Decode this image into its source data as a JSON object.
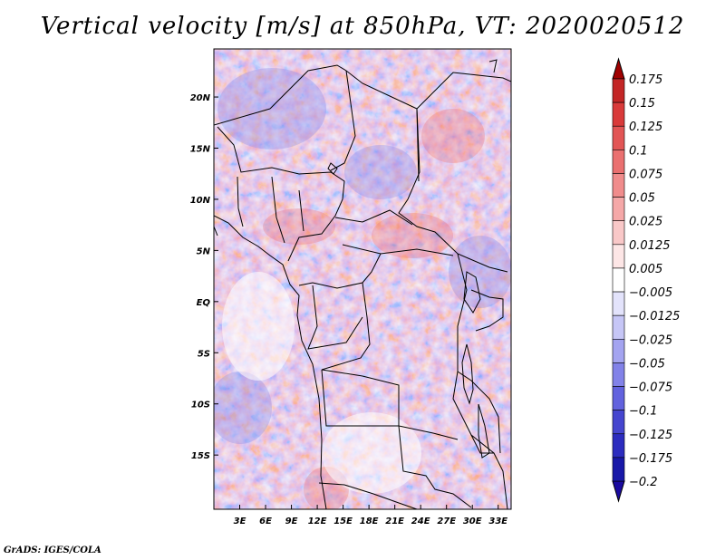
{
  "title": "Vertical velocity [m/s] at 850hPa, VT: 2020020512",
  "footer": "GrADS: IGES/COLA",
  "map": {
    "lon_range": [
      0,
      34.5
    ],
    "lat_range": [
      -20.3,
      24.7
    ],
    "lat_ticks": [
      {
        "value": 20,
        "label": "20N"
      },
      {
        "value": 15,
        "label": "15N"
      },
      {
        "value": 10,
        "label": "10N"
      },
      {
        "value": 5,
        "label": "5N"
      },
      {
        "value": 0,
        "label": "EQ"
      },
      {
        "value": -5,
        "label": "5S"
      },
      {
        "value": -10,
        "label": "10S"
      },
      {
        "value": -15,
        "label": "15S"
      }
    ],
    "lon_ticks": [
      {
        "value": 3,
        "label": "3E"
      },
      {
        "value": 6,
        "label": "6E"
      },
      {
        "value": 9,
        "label": "9E"
      },
      {
        "value": 12,
        "label": "12E"
      },
      {
        "value": 15,
        "label": "15E"
      },
      {
        "value": 18,
        "label": "18E"
      },
      {
        "value": 21,
        "label": "21E"
      },
      {
        "value": 24,
        "label": "24E"
      },
      {
        "value": 27,
        "label": "27E"
      },
      {
        "value": 30,
        "label": "30E"
      },
      {
        "value": 33,
        "label": "33E"
      }
    ]
  },
  "colorbar": {
    "labels": [
      "0.175",
      "0.15",
      "0.125",
      "0.1",
      "0.075",
      "0.05",
      "0.025",
      "0.0125",
      "0.005",
      "−0.005",
      "−0.0125",
      "−0.025",
      "−0.05",
      "−0.075",
      "−0.1",
      "−0.125",
      "−0.175",
      "−0.2"
    ],
    "colors": [
      "#a81818",
      "#c32626",
      "#d93a3a",
      "#e25555",
      "#ea7070",
      "#f08c8c",
      "#f5a8a8",
      "#f9c8c8",
      "#fde6e6",
      "#ffffff",
      "#e3e3fb",
      "#c6c6f6",
      "#a4a4f0",
      "#8282e8",
      "#6262de",
      "#4545cf",
      "#2c2cbf",
      "#1818a8",
      "#10108c"
    ],
    "top_arrow_color": "#a00000",
    "bottom_arrow_color": "#1a0aa0"
  }
}
